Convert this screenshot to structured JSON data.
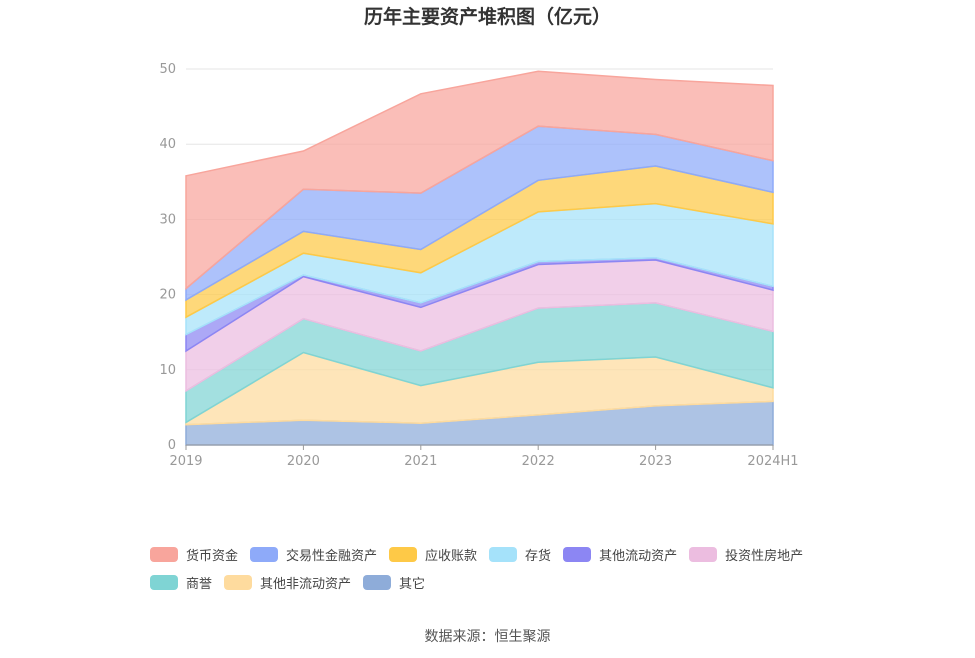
{
  "chart_data": {
    "type": "area",
    "stacked": true,
    "title": "历年主要资产堆积图（亿元）",
    "categories": [
      "2019",
      "2020",
      "2021",
      "2022",
      "2023",
      "2024H1"
    ],
    "ylim": [
      0,
      50
    ],
    "yticks": [
      0,
      10,
      20,
      30,
      40,
      50
    ],
    "grid": true,
    "legend_position": "bottom",
    "series": [
      {
        "name": "其它",
        "color": "#8eacd9",
        "values": [
          2.7,
          3.3,
          2.9,
          4.0,
          5.2,
          5.8
        ]
      },
      {
        "name": "其他非流动资产",
        "color": "#fedb9e",
        "values": [
          0.3,
          9.0,
          5.0,
          7.0,
          6.5,
          1.8
        ]
      },
      {
        "name": "商誉",
        "color": "#7fd4d4",
        "values": [
          4.2,
          4.5,
          4.6,
          7.2,
          7.2,
          7.5
        ]
      },
      {
        "name": "投资性房地产",
        "color": "#ecbde0",
        "values": [
          5.3,
          5.6,
          5.8,
          5.8,
          5.7,
          5.5
        ]
      },
      {
        "name": "其他流动资产",
        "color": "#8c86f3",
        "values": [
          2.2,
          0.2,
          0.6,
          0.4,
          0.3,
          0.5
        ]
      },
      {
        "name": "存货",
        "color": "#a5e2fa",
        "values": [
          2.3,
          2.9,
          4.0,
          6.6,
          7.2,
          8.3
        ]
      },
      {
        "name": "应收账款",
        "color": "#fec947",
        "values": [
          2.3,
          2.9,
          3.1,
          4.2,
          5.0,
          4.2
        ]
      },
      {
        "name": "交易性金融资产",
        "color": "#8eaaf9",
        "values": [
          1.5,
          5.6,
          7.5,
          7.2,
          4.2,
          4.2
        ]
      },
      {
        "name": "货币资金",
        "color": "#f8a59c",
        "values": [
          15.0,
          5.1,
          13.2,
          7.3,
          7.3,
          10.0
        ]
      }
    ],
    "legend_order": [
      "货币资金",
      "交易性金融资产",
      "应收账款",
      "存货",
      "其他流动资产",
      "投资性房地产",
      "商誉",
      "其他非流动资产",
      "其它"
    ]
  },
  "source": "数据来源：恒生聚源"
}
